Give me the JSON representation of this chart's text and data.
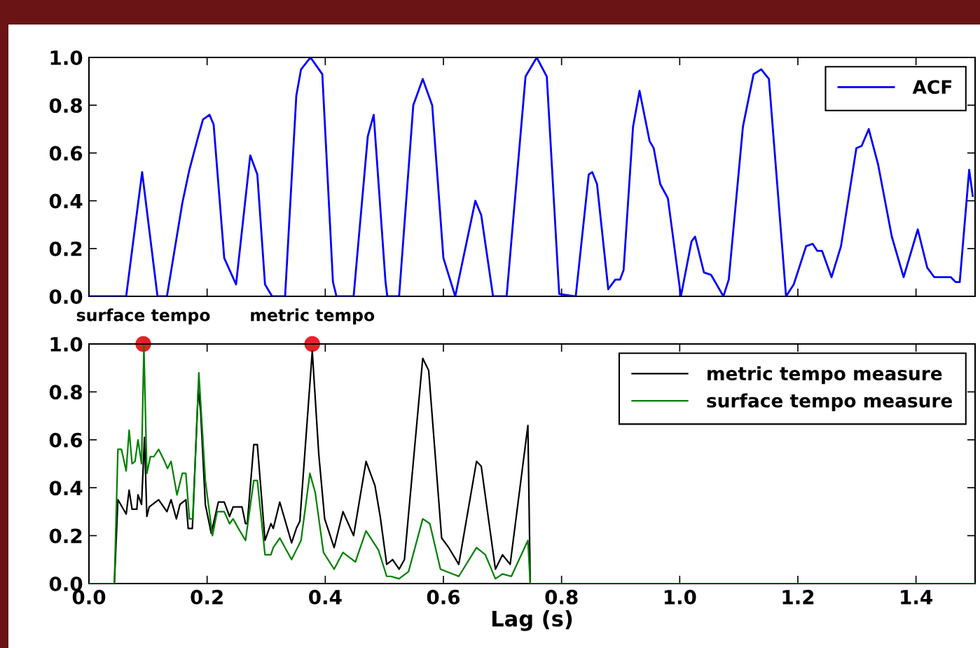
{
  "chart_data": [
    {
      "type": "line",
      "xlim": [
        0,
        1.5
      ],
      "ylim": [
        0,
        1.0
      ],
      "xticks": [
        {
          "value": 0,
          "label": null
        },
        {
          "value": 0.2,
          "label": null
        },
        {
          "value": 0.4,
          "label": null
        },
        {
          "value": 0.6,
          "label": null
        },
        {
          "value": 0.8,
          "label": null
        },
        {
          "value": 1.0,
          "label": null
        },
        {
          "value": 1.2,
          "label": null
        },
        {
          "value": 1.4,
          "label": null
        }
      ],
      "yticks": [
        {
          "value": 0,
          "label": "0.0"
        },
        {
          "value": 0.2,
          "label": "0.2"
        },
        {
          "value": 0.4,
          "label": "0.4"
        },
        {
          "value": 0.6,
          "label": "0.6"
        },
        {
          "value": 0.8,
          "label": "0.8"
        },
        {
          "value": 1.0,
          "label": "1.0"
        }
      ],
      "tick_labels": "y",
      "legend": "top right",
      "series": [
        {
          "name": "ACF",
          "color": "#0000ff",
          "x": [
            0,
            0.063,
            0.09,
            0.116,
            0.132,
            0.158,
            0.17,
            0.185,
            0.193,
            0.204,
            0.211,
            0.229,
            0.249,
            0.273,
            0.285,
            0.298,
            0.31,
            0.332,
            0.351,
            0.359,
            0.375,
            0.395,
            0.413,
            0.419,
            0.448,
            0.472,
            0.482,
            0.502,
            0.505,
            0.525,
            0.549,
            0.565,
            0.581,
            0.6,
            0.62,
            0.654,
            0.664,
            0.684,
            0.707,
            0.739,
            0.758,
            0.775,
            0.796,
            0.824,
            0.846,
            0.852,
            0.86,
            0.879,
            0.891,
            0.899,
            0.905,
            0.921,
            0.932,
            0.949,
            0.956,
            0.967,
            0.98,
            1.002,
            1.02,
            1.026,
            1.041,
            1.053,
            1.074,
            1.083,
            1.107,
            1.125,
            1.138,
            1.151,
            1.18,
            1.193,
            1.214,
            1.225,
            1.233,
            1.241,
            1.257,
            1.273,
            1.299,
            1.308,
            1.32,
            1.336,
            1.359,
            1.379,
            1.403,
            1.419,
            1.431,
            1.459,
            1.467,
            1.474,
            1.49,
            1.496
          ],
          "values": [
            0,
            0,
            0.52,
            0,
            0,
            0.39,
            0.53,
            0.67,
            0.74,
            0.76,
            0.72,
            0.16,
            0.05,
            0.59,
            0.51,
            0.05,
            0,
            0,
            0.84,
            0.95,
            1.0,
            0.93,
            0.06,
            0,
            0,
            0.67,
            0.76,
            0.06,
            0,
            0,
            0.8,
            0.91,
            0.8,
            0.16,
            0,
            0.4,
            0.34,
            0,
            0,
            0.92,
            1.0,
            0.92,
            0.01,
            0,
            0.51,
            0.52,
            0.47,
            0.03,
            0.07,
            0.07,
            0.11,
            0.71,
            0.86,
            0.65,
            0.62,
            0.47,
            0.41,
            0,
            0.23,
            0.25,
            0.1,
            0.09,
            0,
            0.07,
            0.71,
            0.93,
            0.95,
            0.91,
            0,
            0.05,
            0.21,
            0.22,
            0.19,
            0.19,
            0.08,
            0.21,
            0.62,
            0.63,
            0.7,
            0.55,
            0.25,
            0.08,
            0.28,
            0.12,
            0.08,
            0.08,
            0.06,
            0.06,
            0.53,
            0.42
          ]
        }
      ]
    },
    {
      "type": "line",
      "xlim": [
        0,
        1.5
      ],
      "ylim": [
        0,
        1.0
      ],
      "xticks": [
        {
          "value": 0,
          "label": "0.0"
        },
        {
          "value": 0.2,
          "label": "0.2"
        },
        {
          "value": 0.4,
          "label": "0.4"
        },
        {
          "value": 0.6,
          "label": "0.6"
        },
        {
          "value": 0.8,
          "label": "0.8"
        },
        {
          "value": 1.0,
          "label": "1.0"
        },
        {
          "value": 1.2,
          "label": "1.2"
        },
        {
          "value": 1.4,
          "label": "1.4"
        }
      ],
      "yticks": [
        {
          "value": 0,
          "label": "0.0"
        },
        {
          "value": 0.2,
          "label": "0.2"
        },
        {
          "value": 0.4,
          "label": "0.4"
        },
        {
          "value": 0.6,
          "label": "0.6"
        },
        {
          "value": 0.8,
          "label": "0.8"
        },
        {
          "value": 1.0,
          "label": "1.0"
        }
      ],
      "xlabel": "Lag (s)",
      "legend": "top right",
      "annotations": [
        {
          "text": "surface tempo",
          "x": 0.092,
          "y": 1.0
        },
        {
          "text": "metric tempo",
          "x": 0.378,
          "y": 1.0
        }
      ],
      "series": [
        {
          "name": "metric tempo measure",
          "color": "#000000",
          "x": [
            0,
            0.043,
            0.049,
            0.063,
            0.068,
            0.073,
            0.081,
            0.083,
            0.089,
            0.094,
            0.098,
            0.102,
            0.118,
            0.132,
            0.139,
            0.148,
            0.154,
            0.164,
            0.168,
            0.175,
            0.185,
            0.189,
            0.197,
            0.207,
            0.219,
            0.229,
            0.238,
            0.244,
            0.259,
            0.265,
            0.268,
            0.279,
            0.285,
            0.298,
            0.308,
            0.312,
            0.323,
            0.343,
            0.351,
            0.357,
            0.378,
            0.389,
            0.399,
            0.415,
            0.43,
            0.448,
            0.469,
            0.484,
            0.493,
            0.504,
            0.514,
            0.525,
            0.534,
            0.565,
            0.575,
            0.597,
            0.609,
            0.626,
            0.656,
            0.664,
            0.688,
            0.7,
            0.713,
            0.743,
            0.747,
            1.5
          ],
          "values": [
            0,
            0,
            0.35,
            0.29,
            0.39,
            0.31,
            0.31,
            0.37,
            0.33,
            0.61,
            0.28,
            0.32,
            0.35,
            0.3,
            0.35,
            0.27,
            0.33,
            0.35,
            0.23,
            0.23,
            0.81,
            0.72,
            0.33,
            0.21,
            0.34,
            0.34,
            0.28,
            0.32,
            0.32,
            0.25,
            0.25,
            0.58,
            0.58,
            0.18,
            0.25,
            0.23,
            0.34,
            0.17,
            0.23,
            0.26,
            0.97,
            0.54,
            0.27,
            0.15,
            0.3,
            0.2,
            0.51,
            0.41,
            0.28,
            0.08,
            0.1,
            0.06,
            0.1,
            0.94,
            0.89,
            0.19,
            0.15,
            0.08,
            0.51,
            0.49,
            0.06,
            0.12,
            0.08,
            0.66,
            0,
            0
          ]
        },
        {
          "name": "surface tempo measure",
          "color": "#008000",
          "x": [
            0,
            0.043,
            0.049,
            0.055,
            0.063,
            0.068,
            0.073,
            0.078,
            0.083,
            0.089,
            0.093,
            0.098,
            0.104,
            0.11,
            0.118,
            0.128,
            0.133,
            0.139,
            0.149,
            0.158,
            0.164,
            0.17,
            0.176,
            0.186,
            0.197,
            0.209,
            0.217,
            0.229,
            0.238,
            0.244,
            0.253,
            0.265,
            0.279,
            0.285,
            0.298,
            0.308,
            0.312,
            0.323,
            0.343,
            0.351,
            0.359,
            0.374,
            0.383,
            0.397,
            0.415,
            0.43,
            0.451,
            0.469,
            0.49,
            0.504,
            0.511,
            0.525,
            0.541,
            0.565,
            0.577,
            0.595,
            0.626,
            0.656,
            0.671,
            0.688,
            0.7,
            0.715,
            0.743,
            0.747,
            1.5
          ],
          "values": [
            0,
            0,
            0.56,
            0.56,
            0.47,
            0.64,
            0.5,
            0.51,
            0.6,
            0.5,
            0.99,
            0.46,
            0.53,
            0.53,
            0.56,
            0.51,
            0.48,
            0.51,
            0.37,
            0.46,
            0.46,
            0.27,
            0.27,
            0.88,
            0.43,
            0.2,
            0.3,
            0.3,
            0.25,
            0.27,
            0.23,
            0.18,
            0.43,
            0.43,
            0.12,
            0.12,
            0.15,
            0.19,
            0.1,
            0.14,
            0.18,
            0.46,
            0.38,
            0.13,
            0.06,
            0.13,
            0.09,
            0.22,
            0.14,
            0.03,
            0.03,
            0.02,
            0.05,
            0.27,
            0.25,
            0.06,
            0.03,
            0.15,
            0.12,
            0.02,
            0.04,
            0.03,
            0.18,
            0,
            0
          ]
        },
        {
          "type": "scatter",
          "color": "#e8202a",
          "marker": "circle",
          "x": [
            0.092,
            0.378
          ],
          "values": [
            1.0,
            1.0
          ]
        }
      ]
    }
  ]
}
